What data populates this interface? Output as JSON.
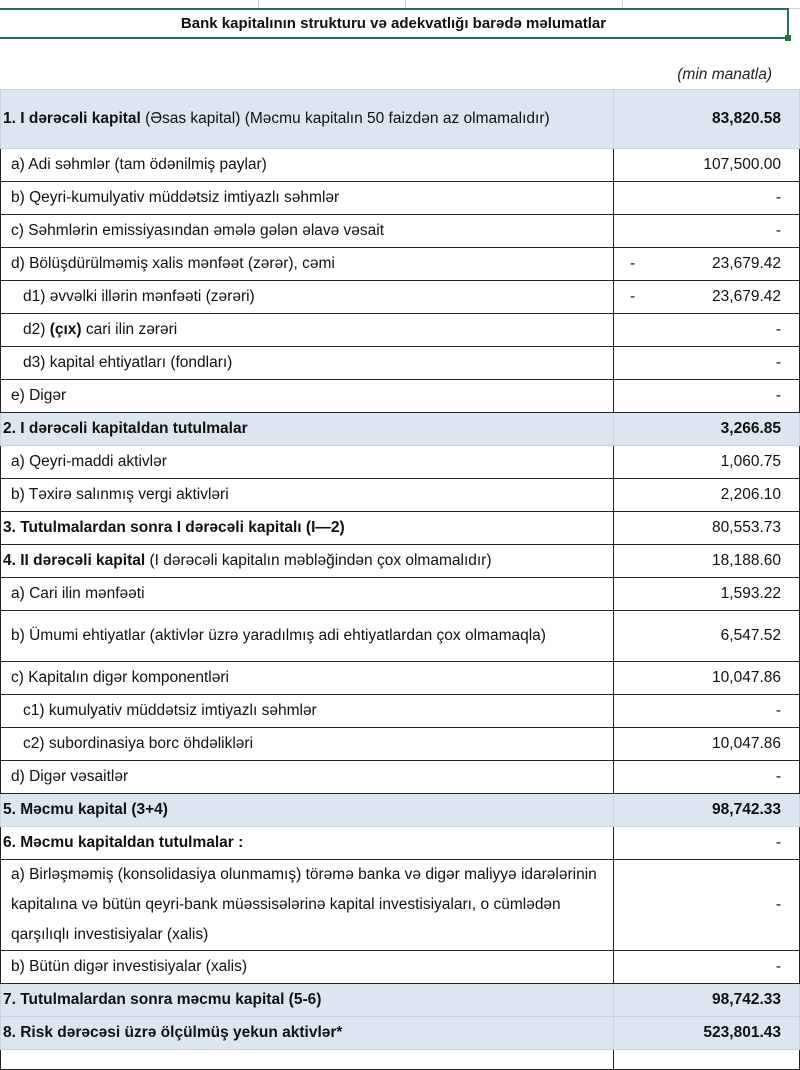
{
  "title": "Bank kapitalının strukturu və adekvatlığı barədə məlumatlar",
  "unit": "(min manatla)",
  "rows": [
    {
      "bold": "1. I dərəcəli kapital",
      "rest": " (Əsas kapital) (Məcmu kapitalın 50 faizdən  az olmamalıdır)",
      "value": "83,820.58",
      "blue": true,
      "h": 59
    },
    {
      "pre": "a) Adi səhmlər (tam ödənilmiş paylar)",
      "value": "107,500.00",
      "ind": 1
    },
    {
      "pre": "b) Qeyri-kumulyativ müddətsiz imtiyazlı səhmlər",
      "value": "-",
      "ind": 1
    },
    {
      "pre": "c) Səhmlərin emissiyasından əmələ gələn  əlavə vəsait",
      "value": "-",
      "ind": 1
    },
    {
      "pre": "d)   Bölüşdürülməmiş xalis mənfəət (zərər), cəmi",
      "value": "23,679.42",
      "neg": "-",
      "ind": 1
    },
    {
      "pre": "d1) əvvəlki illərin mənfəəti (zərəri)",
      "value": "23,679.42",
      "neg": "-",
      "ind": 2
    },
    {
      "pre": "d2) ",
      "bold": "(çıx)",
      "rest": " cari ilin zərəri",
      "value": "-",
      "ind": 2,
      "boldMid": true
    },
    {
      "pre": "d3) kapital ehtiyatları (fondları)",
      "value": "-",
      "ind": 2
    },
    {
      "pre": "e) Digər",
      "value": "-",
      "ind": 1
    },
    {
      "bold": "2. I dərəcəli kapitaldan  tutulmalar",
      "value": "3,266.85",
      "blue": true
    },
    {
      "pre": "a) Qeyri-maddi aktivlər",
      "value": "1,060.75",
      "ind": 1
    },
    {
      "pre": "b) Təxirə salınmış vergi aktivləri",
      "value": "2,206.10",
      "ind": 1
    },
    {
      "bold": "3. Tutulmalardan  sonra I dərəcəli kapitalı (I—2)",
      "value": "80,553.73"
    },
    {
      "bold": "4. II dərəcəli  kapital",
      "rest": " (I dərəcəli  kapitalın  məbləğindən çox olmamalıdır)",
      "value": "18,188.60"
    },
    {
      "pre": "a) Cari ilin mənfəəti",
      "value": "1,593.22",
      "ind": 1
    },
    {
      "pre": "b) Ümumi ehtiyatlar (aktivlər üzrə yaradılmış adi ehtiyatlardan çox olmamaqla)",
      "value": "6,547.52",
      "ind": 1,
      "h": 51
    },
    {
      "pre": "c)  Kapitalın digər komponentləri",
      "value": "10,047.86",
      "ind": 1
    },
    {
      "pre": "c1) kumulyativ müddətsiz imtiyazlı səhmlər",
      "value": "-",
      "ind": 2
    },
    {
      "pre": "c2) subordinasiya borc öhdəlikləri",
      "value": "10,047.86",
      "ind": 2
    },
    {
      "pre": "d) Digər vəsaitlər",
      "value": "-",
      "ind": 1
    },
    {
      "bold": "5. Məcmu kapital (3+4)",
      "value": "98,742.33",
      "blue": true
    },
    {
      "bold": "6. Məcmu kapitaldan tutulmalar :",
      "value": "-"
    },
    {
      "pre": "a)  Birləşməmiş (konsolidasiya olunmamış) törəmə banka və digər maliyyə idarələrinin kapitalına və bütün qeyri-bank müəssisələrinə kapital investisiyaları, o cümlədən qarşılıqlı investisiyalar (xalis)",
      "value": "-",
      "ind": 1,
      "h": 74
    },
    {
      "pre": "b)   Bütün digər investisiyalar (xalis)",
      "value": "-",
      "ind": 1
    },
    {
      "bold": "7. Tutulmalardan  sonra məcmu kapital (5-6)",
      "value": "98,742.33",
      "blue": true
    },
    {
      "bold": "8. Risk dərəcəsi üzrə ölçülmüş  yekun aktivlər*",
      "value": "523,801.43",
      "blue": true
    }
  ]
}
